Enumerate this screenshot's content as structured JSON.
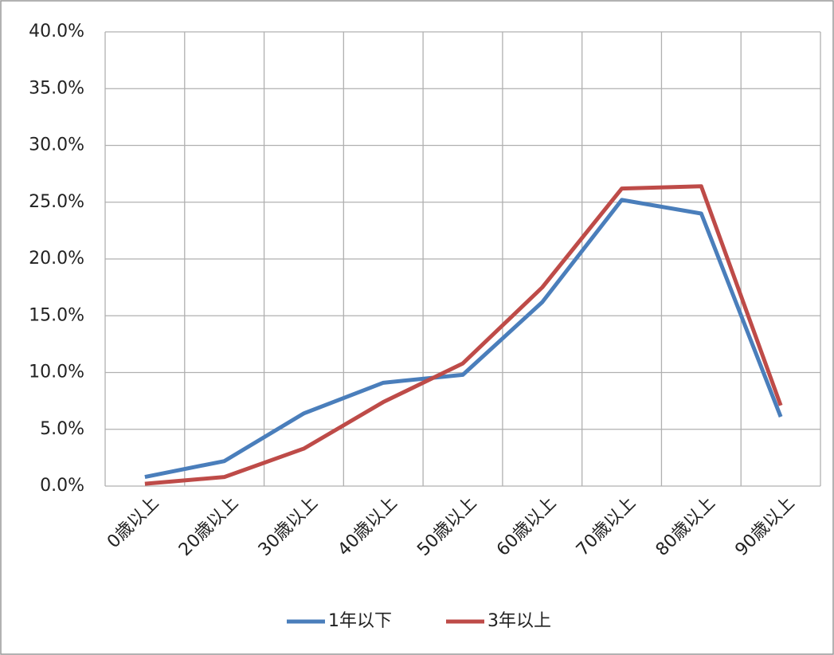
{
  "chart_data": {
    "type": "line",
    "categories": [
      "0歳以上",
      "20歳以上",
      "30歳以上",
      "40歳以上",
      "50歳以上",
      "60歳以上",
      "70歳以上",
      "80歳以上",
      "90歳以上"
    ],
    "series": [
      {
        "name": "1年以下",
        "color": "#4a7ebb",
        "values": [
          0.8,
          2.2,
          6.4,
          9.1,
          9.8,
          16.2,
          25.2,
          24.0,
          6.1
        ]
      },
      {
        "name": "3年以上",
        "color": "#be4b48",
        "values": [
          0.2,
          0.8,
          3.3,
          7.4,
          10.8,
          17.5,
          26.2,
          26.4,
          7.1
        ]
      }
    ],
    "ylim": [
      0,
      40
    ],
    "yticks": [
      {
        "value": 0,
        "label": "0.0%"
      },
      {
        "value": 5,
        "label": "5.0%"
      },
      {
        "value": 10,
        "label": "10.0%"
      },
      {
        "value": 15,
        "label": "15.0%"
      },
      {
        "value": 20,
        "label": "20.0%"
      },
      {
        "value": 25,
        "label": "25.0%"
      },
      {
        "value": 30,
        "label": "30.0%"
      },
      {
        "value": 35,
        "label": "35.0%"
      },
      {
        "value": 40,
        "label": "40.0%"
      }
    ],
    "grid": true,
    "legend": "bottom"
  }
}
